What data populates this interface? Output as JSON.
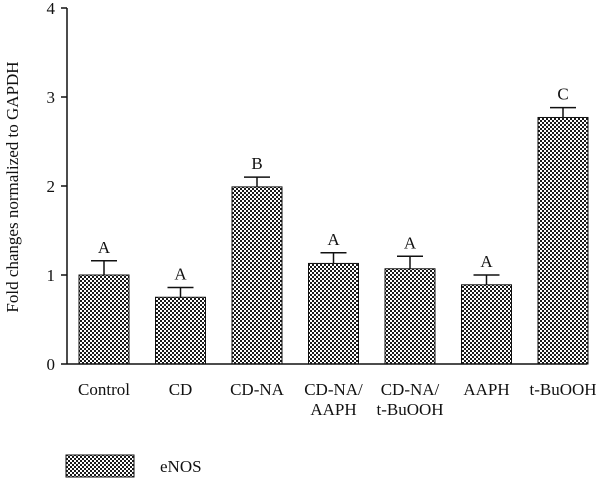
{
  "chart_data": {
    "type": "bar",
    "categories": [
      [
        "Control"
      ],
      [
        "CD"
      ],
      [
        "CD-NA"
      ],
      [
        "CD-NA/",
        "AAPH"
      ],
      [
        "CD-NA/",
        "t-BuOOH"
      ],
      [
        "AAPH"
      ],
      [
        "t-BuOOH"
      ]
    ],
    "series": [
      {
        "name": "eNOS",
        "values": [
          1.0,
          0.75,
          1.99,
          1.13,
          1.07,
          0.89,
          2.77
        ],
        "errors": [
          0.16,
          0.11,
          0.11,
          0.12,
          0.14,
          0.11,
          0.11
        ],
        "significance": [
          "A",
          "A",
          "B",
          "A",
          "A",
          "A",
          "C"
        ]
      }
    ],
    "ylabel": "Fold changes normalized to GAPDH",
    "ylim": [
      0,
      4
    ],
    "yticks": [
      0,
      1,
      2,
      3,
      4
    ],
    "grid": false,
    "legend_position": "bottom-left",
    "bar_pattern": "checkerboard",
    "colors": {
      "bar_dark": "#1a1a1a",
      "bar_light": "#ffffff",
      "axis": "#111111"
    }
  }
}
